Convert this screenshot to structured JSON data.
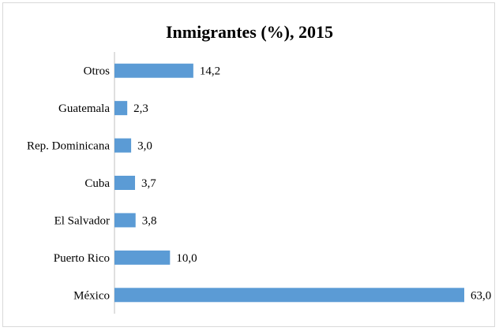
{
  "chart_data": {
    "type": "bar",
    "orientation": "horizontal",
    "title": "Inmigrantes (%), 2015",
    "categories": [
      "Otros",
      "Guatemala",
      "Rep. Dominicana",
      "Cuba",
      "El Salvador",
      "Puerto Rico",
      "México"
    ],
    "values": [
      14.2,
      2.3,
      3.0,
      3.7,
      3.8,
      10.0,
      63.0
    ],
    "value_labels": [
      "14,2",
      "2,3",
      "3,0",
      "3,7",
      "3,8",
      "10,0",
      "63,0"
    ],
    "xlabel": "",
    "ylabel": "",
    "xlim": [
      0,
      63
    ],
    "grid": false,
    "legend": "none",
    "bar_color": "#5b9bd5"
  }
}
